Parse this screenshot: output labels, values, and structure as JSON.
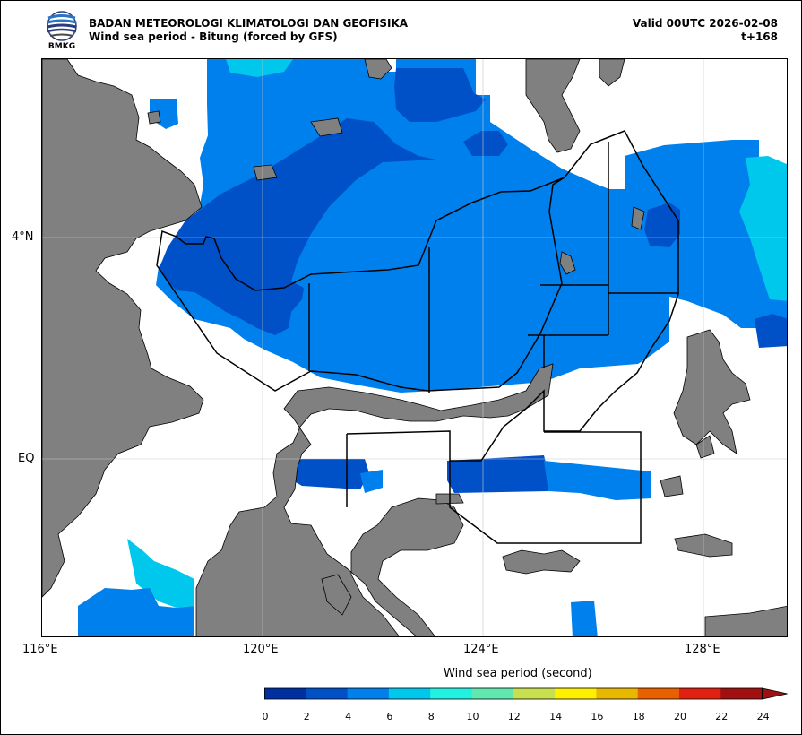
{
  "header": {
    "agency": "BADAN METEOROLOGI KLIMATOLOGI DAN GEOFISIKA",
    "product": "Wind sea period - Bitung (forced by GFS)",
    "valid": "Valid 00UTC 2026-02-08",
    "lead": "t+168",
    "logo_text": "BMKG"
  },
  "map": {
    "lat_labels": [
      "4°N",
      "EQ"
    ],
    "lon_labels": [
      "116°E",
      "120°E",
      "124°E",
      "128°E"
    ],
    "land_color": "#808080",
    "colors": {
      "p2_4": "#0050c8",
      "p4_6": "#0080ec",
      "p6_8": "#00c8ec",
      "p8_10": "#22f0e0"
    }
  },
  "colorbar": {
    "title": "Wind sea period (second)",
    "ticks": [
      "0",
      "2",
      "4",
      "6",
      "8",
      "10",
      "12",
      "14",
      "16",
      "18",
      "20",
      "22",
      "24"
    ],
    "colors": [
      "#0030a0",
      "#0050c8",
      "#0080ec",
      "#00c8ec",
      "#22f0e0",
      "#60e8b0",
      "#c8e050",
      "#fff000",
      "#e8b800",
      "#e86000",
      "#e02010",
      "#a01010"
    ],
    "extend_color": "#a01010"
  }
}
